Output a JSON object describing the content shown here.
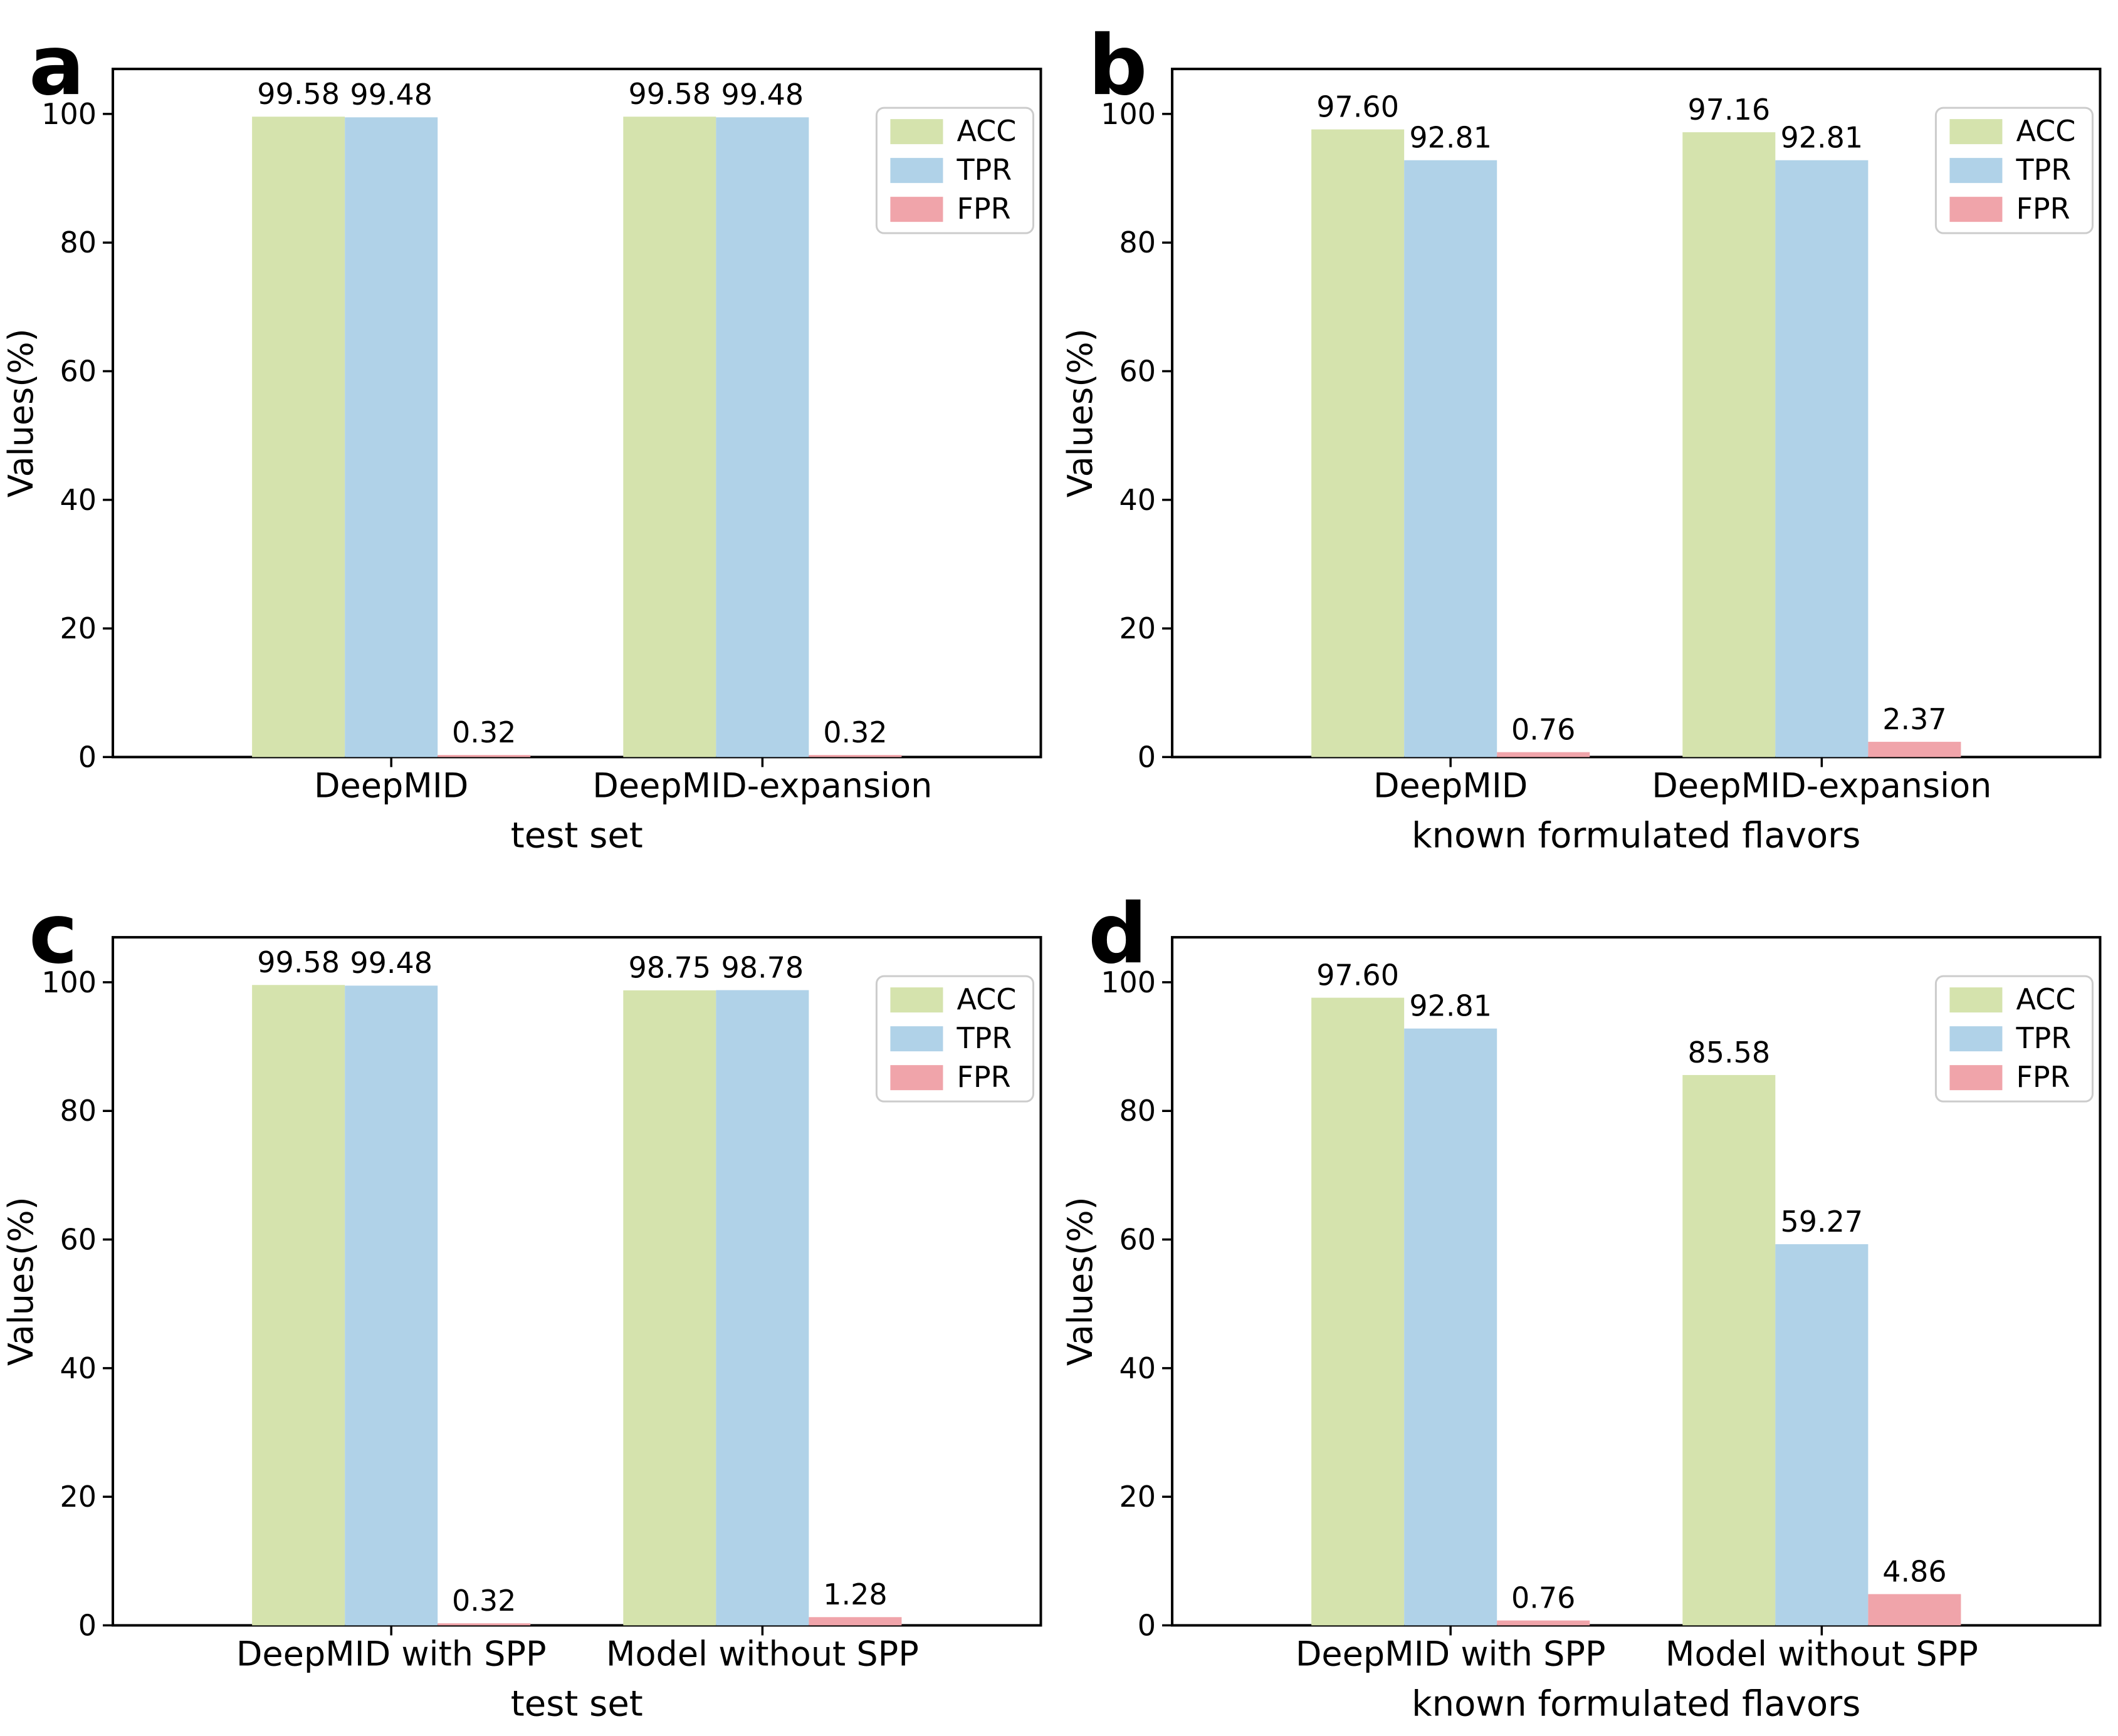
{
  "figure": {
    "background": "#ffffff",
    "ylabel": "Values(%)",
    "yticks": [
      0,
      20,
      40,
      60,
      80,
      100
    ],
    "ylim": [
      0,
      107
    ],
    "legend_labels": [
      "ACC",
      "TPR",
      "FPR"
    ],
    "series_colors": {
      "ACC": "#d5e3ad",
      "TPR": "#b0d2e8",
      "FPR": "#f0a4aa"
    },
    "axis_color": "#000000",
    "legend_border_color": "#cccccc"
  },
  "chart_data": [
    {
      "type": "bar",
      "panel": "a",
      "xlabel": "test set",
      "ylabel": "Values(%)",
      "categories": [
        "DeepMID",
        "DeepMID-expansion"
      ],
      "series": [
        {
          "name": "ACC",
          "color": "#d5e3ad",
          "values": [
            99.58,
            99.58
          ]
        },
        {
          "name": "TPR",
          "color": "#b0d2e8",
          "values": [
            99.48,
            99.48
          ]
        },
        {
          "name": "FPR",
          "color": "#f0a4aa",
          "values": [
            0.32,
            0.32
          ]
        }
      ],
      "ylim": [
        0,
        107
      ],
      "yticks": [
        0,
        20,
        40,
        60,
        80,
        100
      ],
      "legend_position": "upper right",
      "grid": false
    },
    {
      "type": "bar",
      "panel": "b",
      "xlabel": "known formulated flavors",
      "ylabel": "Values(%)",
      "categories": [
        "DeepMID",
        "DeepMID-expansion"
      ],
      "series": [
        {
          "name": "ACC",
          "color": "#d5e3ad",
          "values": [
            97.6,
            97.16
          ]
        },
        {
          "name": "TPR",
          "color": "#b0d2e8",
          "values": [
            92.81,
            92.81
          ]
        },
        {
          "name": "FPR",
          "color": "#f0a4aa",
          "values": [
            0.76,
            2.37
          ]
        }
      ],
      "ylim": [
        0,
        107
      ],
      "yticks": [
        0,
        20,
        40,
        60,
        80,
        100
      ],
      "legend_position": "upper right",
      "grid": false
    },
    {
      "type": "bar",
      "panel": "c",
      "xlabel": "test set",
      "ylabel": "Values(%)",
      "categories": [
        "DeepMID with SPP",
        "Model without SPP"
      ],
      "series": [
        {
          "name": "ACC",
          "color": "#d5e3ad",
          "values": [
            99.58,
            98.75
          ]
        },
        {
          "name": "TPR",
          "color": "#b0d2e8",
          "values": [
            99.48,
            98.78
          ]
        },
        {
          "name": "FPR",
          "color": "#f0a4aa",
          "values": [
            0.32,
            1.28
          ]
        }
      ],
      "ylim": [
        0,
        107
      ],
      "yticks": [
        0,
        20,
        40,
        60,
        80,
        100
      ],
      "legend_position": "upper right",
      "grid": false
    },
    {
      "type": "bar",
      "panel": "d",
      "xlabel": "known formulated flavors",
      "ylabel": "Values(%)",
      "categories": [
        "DeepMID with SPP",
        "Model without SPP"
      ],
      "series": [
        {
          "name": "ACC",
          "color": "#d5e3ad",
          "values": [
            97.6,
            85.58
          ]
        },
        {
          "name": "TPR",
          "color": "#b0d2e8",
          "values": [
            92.81,
            59.27
          ]
        },
        {
          "name": "FPR",
          "color": "#f0a4aa",
          "values": [
            0.76,
            4.86
          ]
        }
      ],
      "ylim": [
        0,
        107
      ],
      "yticks": [
        0,
        20,
        40,
        60,
        80,
        100
      ],
      "legend_position": "upper right",
      "grid": false
    }
  ]
}
